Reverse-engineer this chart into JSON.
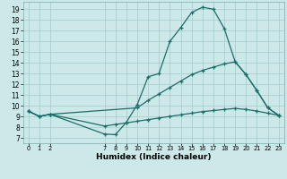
{
  "xlabel": "Humidex (Indice chaleur)",
  "bg_color": "#cce8e8",
  "line_color": "#1a6e6a",
  "grid_color": "#aacece",
  "x_ticks": [
    0,
    1,
    2,
    7,
    8,
    9,
    10,
    11,
    12,
    13,
    14,
    15,
    16,
    17,
    18,
    19,
    20,
    21,
    22,
    23
  ],
  "y_ticks": [
    7,
    8,
    9,
    10,
    11,
    12,
    13,
    14,
    15,
    16,
    17,
    18,
    19
  ],
  "xlim": [
    -0.5,
    23.5
  ],
  "ylim": [
    6.5,
    19.7
  ],
  "curve1_x": [
    0,
    1,
    2,
    7,
    8,
    9,
    10,
    11,
    12,
    13,
    14,
    15,
    16,
    17,
    18,
    19,
    20,
    21,
    22,
    23
  ],
  "curve1_y": [
    9.5,
    9.0,
    9.2,
    7.35,
    7.3,
    8.45,
    10.1,
    12.7,
    13.0,
    16.0,
    17.3,
    18.7,
    19.2,
    19.0,
    17.2,
    14.1,
    12.9,
    11.4,
    9.8,
    9.1
  ],
  "curve2_x": [
    0,
    1,
    2,
    10,
    11,
    12,
    13,
    14,
    15,
    16,
    17,
    18,
    19,
    20,
    21,
    22,
    23
  ],
  "curve2_y": [
    9.5,
    9.0,
    9.2,
    9.8,
    10.5,
    11.1,
    11.7,
    12.3,
    12.9,
    13.3,
    13.6,
    13.9,
    14.1,
    12.9,
    11.4,
    9.8,
    9.1
  ],
  "curve3_x": [
    0,
    1,
    2,
    7,
    8,
    9,
    10,
    11,
    12,
    13,
    14,
    15,
    16,
    17,
    18,
    19,
    20,
    21,
    22,
    23
  ],
  "curve3_y": [
    9.5,
    9.0,
    9.2,
    8.1,
    8.25,
    8.4,
    8.55,
    8.7,
    8.85,
    9.0,
    9.15,
    9.3,
    9.45,
    9.55,
    9.65,
    9.75,
    9.65,
    9.5,
    9.3,
    9.1
  ]
}
